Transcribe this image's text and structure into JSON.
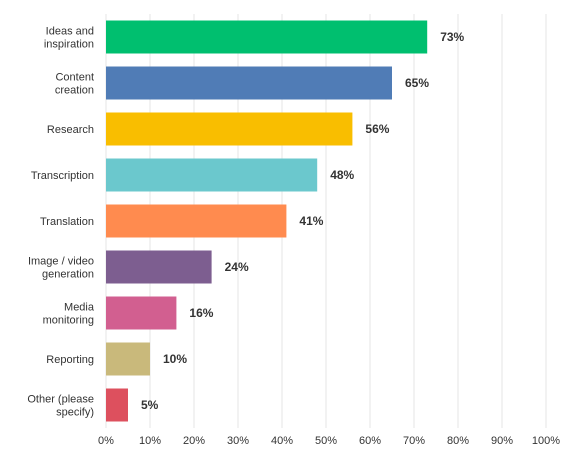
{
  "chart_data": {
    "type": "bar",
    "orientation": "horizontal",
    "categories": [
      [
        "Ideas and",
        "inspiration"
      ],
      [
        "Content",
        "creation"
      ],
      [
        "Research"
      ],
      [
        "Transcription"
      ],
      [
        "Translation"
      ],
      [
        "Image / video",
        "generation"
      ],
      [
        "Media",
        "monitoring"
      ],
      [
        "Reporting"
      ],
      [
        "Other (please",
        "specify)"
      ]
    ],
    "values": [
      73,
      65,
      56,
      48,
      41,
      24,
      16,
      10,
      5
    ],
    "value_labels": [
      "73%",
      "65%",
      "56%",
      "48%",
      "41%",
      "24%",
      "16%",
      "10%",
      "5%"
    ],
    "colors": [
      "#00bf6f",
      "#507cb6",
      "#f9be00",
      "#6bc8cd",
      "#ff8b4f",
      "#7d5e90",
      "#d25f90",
      "#c9b97b",
      "#dd505e"
    ],
    "xlim": [
      0,
      100
    ],
    "x_ticks": [
      "0%",
      "10%",
      "20%",
      "30%",
      "40%",
      "50%",
      "60%",
      "70%",
      "80%",
      "90%",
      "100%"
    ],
    "grid": true,
    "title": "",
    "xlabel": "",
    "ylabel": ""
  }
}
